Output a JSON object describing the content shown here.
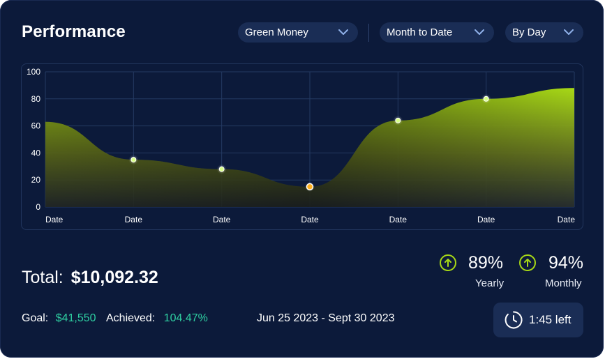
{
  "header": {
    "title": "Performance",
    "dropdowns": [
      {
        "label": "Green Money"
      },
      {
        "label": "Month to Date"
      },
      {
        "label": "By Day"
      }
    ]
  },
  "chart_data": {
    "type": "area",
    "categories": [
      "Date",
      "Date",
      "Date",
      "Date",
      "Date",
      "Date",
      "Date"
    ],
    "x": [
      0,
      1,
      2,
      3,
      4,
      5,
      6
    ],
    "values": [
      63,
      35,
      28,
      15,
      64,
      80,
      88
    ],
    "marker_points": [
      1,
      2,
      3,
      4,
      5
    ],
    "highlight_point": 3,
    "ylim": [
      0,
      100
    ],
    "yticks": [
      "0",
      "20",
      "40",
      "60",
      "80",
      "100"
    ],
    "grid": true,
    "colors": {
      "fill_top": "#a7d816",
      "fill_bottom": "#2a2f2b",
      "marker": "#d8ff8a",
      "highlight": "#ffb020",
      "grid": "#243a62"
    }
  },
  "summary": {
    "total_label": "Total:",
    "total_value": "$10,092.32",
    "yearly_pct": "89%",
    "yearly_label": "Yearly",
    "monthly_pct": "94%",
    "monthly_label": "Monthly",
    "goal_label": "Goal:",
    "goal_value": "$41,550",
    "achieved_label": "Achieved:",
    "achieved_value": "104.47%",
    "date_range": "Jun 25 2023 - Sept 30 2023",
    "time_left": "1:45 left"
  },
  "icons": {
    "chevron": "chevron-down-icon",
    "arrow": "arrow-up-circle-icon",
    "timer": "timer-icon"
  },
  "colors": {
    "card_bg": "#0c1a3a",
    "accent_green": "#a7d816",
    "teal": "#2fd0a2"
  }
}
